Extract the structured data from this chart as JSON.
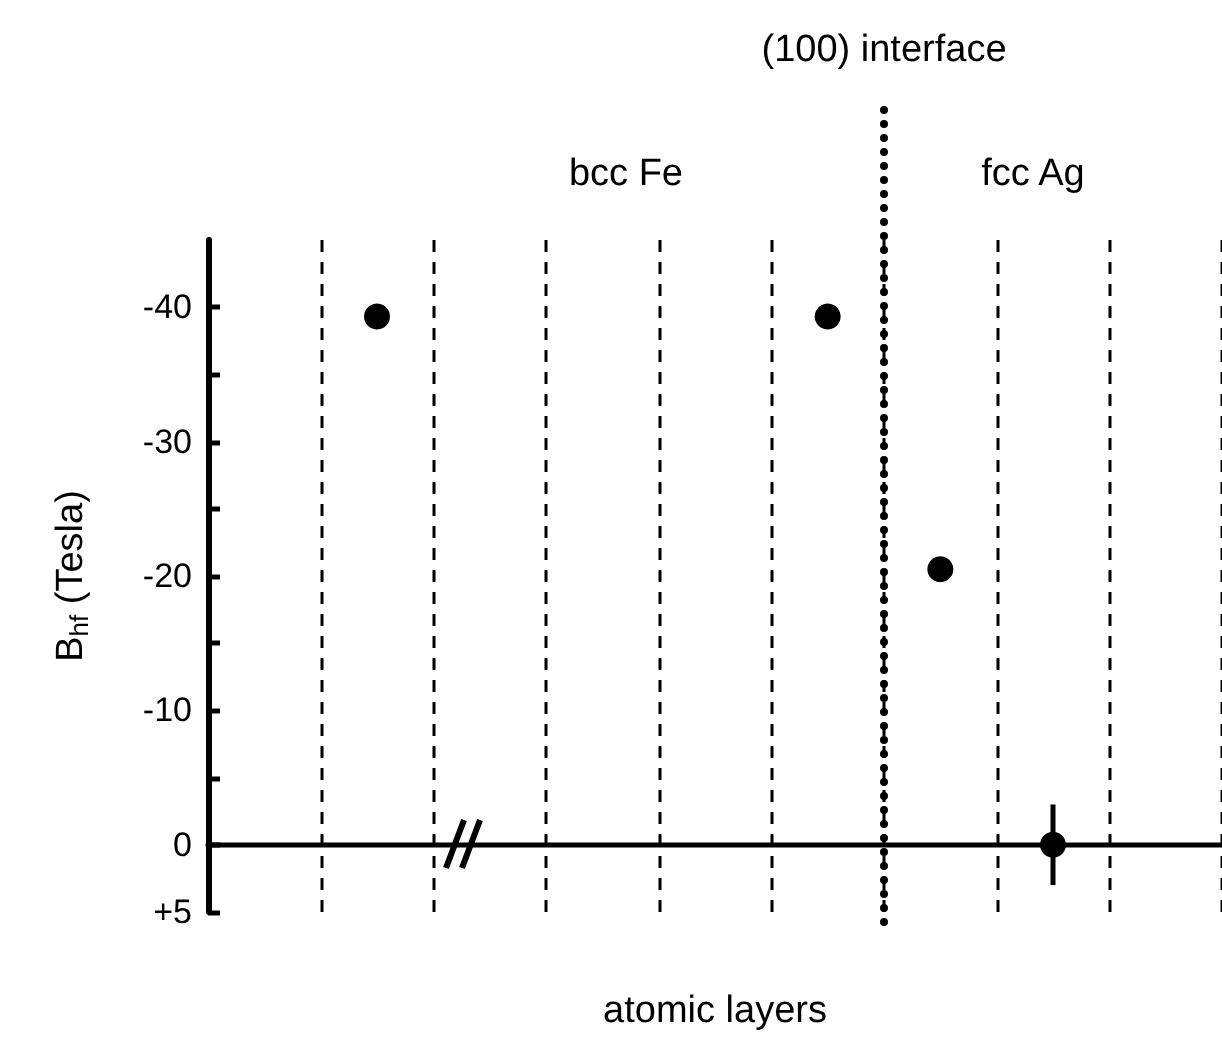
{
  "chart_data": {
    "type": "scatter",
    "xlabel": "atomic layers",
    "ylabel": "B$_{hf}$ (Tesla)",
    "categories": [
      null,
      null,
      null,
      null,
      null,
      null,
      null,
      null,
      null
    ],
    "values": [
      null,
      -39.3,
      null,
      null,
      null,
      -39.3,
      -20.5,
      0,
      null
    ],
    "errors": [
      null,
      null,
      null,
      null,
      null,
      null,
      null,
      3,
      null
    ],
    "color": "#000000",
    "marker": "circle",
    "grid": "x",
    "ylim": [
      5,
      -45
    ],
    "yticks": [
      -40,
      {
        "value": -35,
        "label": null
      },
      -30,
      {
        "value": -25,
        "label": null
      },
      -20,
      {
        "value": -15,
        "label": null
      },
      -10,
      {
        "value": -5,
        "label": null
      },
      0,
      {
        "value": 5,
        "label": "+5"
      }
    ],
    "annotations": [
      "bcc Fe",
      "fcc Ag",
      "(100) interface"
    ]
  }
}
